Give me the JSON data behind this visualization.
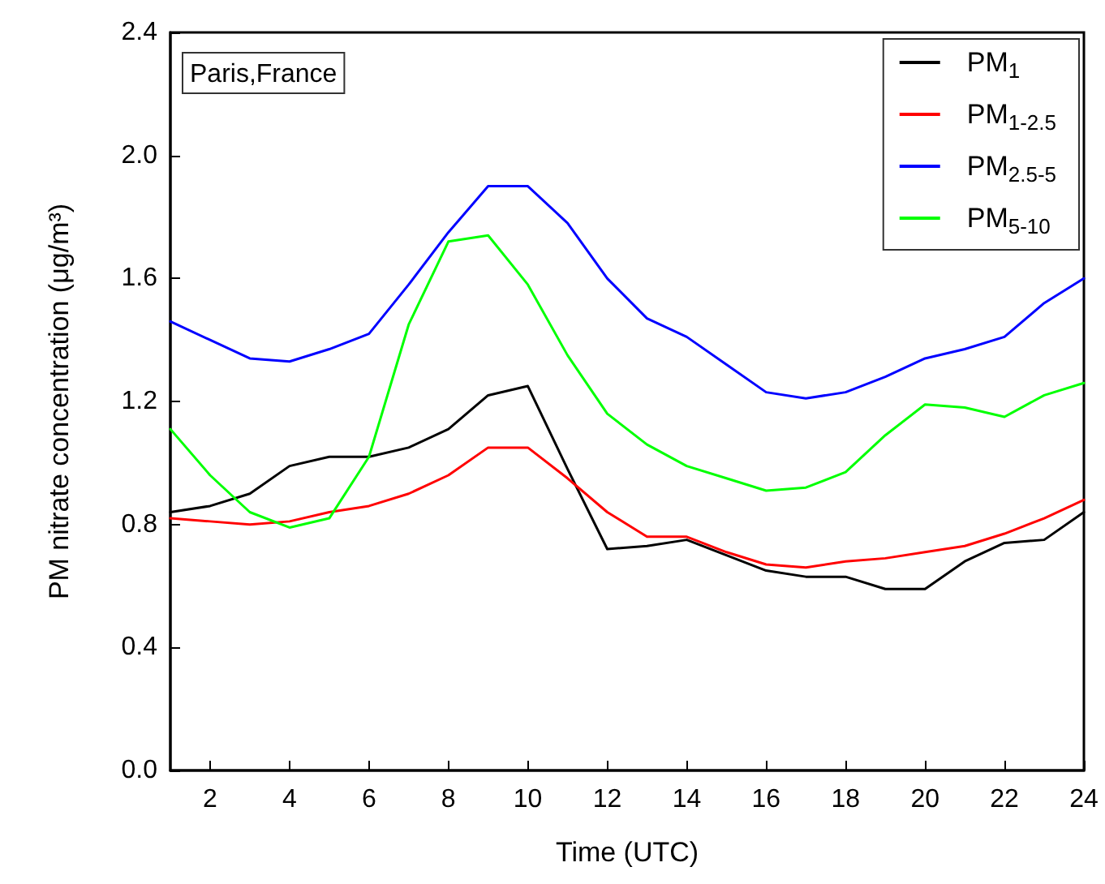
{
  "chart_data": {
    "type": "line",
    "xlabel": "Time (UTC)",
    "ylabel": "PM nitrate concentration (μg/m³)",
    "annotations": [
      "Paris,France"
    ],
    "x": [
      1,
      2,
      3,
      4,
      5,
      6,
      7,
      8,
      9,
      10,
      11,
      12,
      13,
      14,
      15,
      16,
      17,
      18,
      19,
      20,
      21,
      22,
      23,
      24
    ],
    "series": [
      {
        "name": "PM$_{1}$",
        "color": "#000000",
        "values": [
          0.84,
          0.86,
          0.9,
          0.99,
          1.02,
          1.02,
          1.05,
          1.11,
          1.22,
          1.25,
          0.98,
          0.72,
          0.73,
          0.75,
          0.7,
          0.65,
          0.63,
          0.63,
          0.59,
          0.59,
          0.68,
          0.74,
          0.75,
          0.84
        ]
      },
      {
        "name": "PM$_{1-2.5}$",
        "color": "#ff0000",
        "values": [
          0.82,
          0.81,
          0.8,
          0.81,
          0.84,
          0.86,
          0.9,
          0.96,
          1.05,
          1.05,
          0.95,
          0.84,
          0.76,
          0.76,
          0.71,
          0.67,
          0.66,
          0.68,
          0.69,
          0.71,
          0.73,
          0.77,
          0.82,
          0.88
        ]
      },
      {
        "name": "PM$_{2.5-5}$",
        "color": "#0000ff",
        "values": [
          1.46,
          1.4,
          1.34,
          1.33,
          1.37,
          1.42,
          1.58,
          1.75,
          1.9,
          1.9,
          1.78,
          1.6,
          1.47,
          1.41,
          1.32,
          1.23,
          1.21,
          1.23,
          1.28,
          1.34,
          1.37,
          1.41,
          1.52,
          1.6
        ]
      },
      {
        "name": "PM$_{5-10}$",
        "color": "#00ff00",
        "values": [
          1.11,
          0.96,
          0.84,
          0.79,
          0.82,
          1.02,
          1.45,
          1.72,
          1.74,
          1.58,
          1.35,
          1.16,
          1.06,
          0.99,
          0.95,
          0.91,
          0.92,
          0.97,
          1.09,
          1.19,
          1.18,
          1.15,
          1.22,
          1.26
        ]
      }
    ],
    "xlim": [
      1,
      24
    ],
    "xticks": [
      2,
      4,
      6,
      8,
      10,
      12,
      14,
      16,
      18,
      20,
      22,
      24
    ],
    "ylim": [
      0,
      2.4
    ],
    "yticks": [
      {
        "value": 0,
        "label": "0.0"
      },
      {
        "value": 0.4,
        "label": "0.4"
      },
      {
        "value": 0.8,
        "label": "0.8"
      },
      {
        "value": 1.2,
        "label": "1.2"
      },
      {
        "value": 1.6,
        "label": "1.6"
      },
      {
        "value": 2.0,
        "label": "2.0"
      },
      {
        "value": 2.4,
        "label": "2.4"
      }
    ],
    "grid": false,
    "legend": "top right",
    "marker": "none",
    "line_style": "solid"
  }
}
